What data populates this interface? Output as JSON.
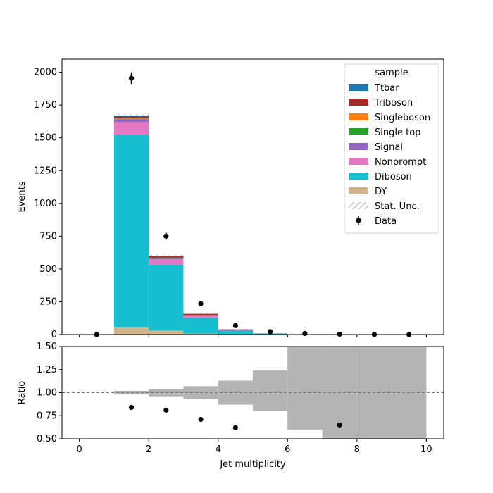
{
  "chart_data": {
    "type": "bar",
    "stacked": true,
    "histogram_bins": [
      0,
      1,
      2,
      3,
      4,
      5,
      6,
      7,
      8,
      9,
      10
    ],
    "main_panel": {
      "ylabel": "Events",
      "ylim": [
        0,
        2100
      ],
      "yticks": [
        0,
        250,
        500,
        750,
        1000,
        1250,
        1500,
        1750,
        2000
      ],
      "series": [
        {
          "name": "DY",
          "color": "#d2b48c",
          "values": [
            0,
            55,
            30,
            8,
            3,
            1,
            0,
            0,
            0,
            0
          ]
        },
        {
          "name": "Diboson",
          "color": "#17becf",
          "values": [
            0,
            1470,
            505,
            122,
            30,
            6,
            2,
            1,
            0,
            0
          ]
        },
        {
          "name": "Nonprompt",
          "color": "#e377c2",
          "values": [
            0,
            95,
            38,
            14,
            3,
            1,
            0,
            0,
            0,
            0
          ]
        },
        {
          "name": "Signal",
          "color": "#9467bd",
          "values": [
            0,
            22,
            10,
            5,
            1,
            0,
            0,
            0,
            0,
            0
          ]
        },
        {
          "name": "Single top",
          "color": "#2ca02c",
          "values": [
            0,
            3,
            2,
            1,
            0,
            0,
            0,
            0,
            0,
            0
          ]
        },
        {
          "name": "Singleboson",
          "color": "#ff7f0e",
          "values": [
            0,
            2,
            1,
            0,
            0,
            0,
            0,
            0,
            0,
            0
          ]
        },
        {
          "name": "Triboson",
          "color": "#a52a2a",
          "values": [
            0,
            18,
            12,
            6,
            2,
            1,
            0,
            0,
            0,
            0
          ]
        },
        {
          "name": "Ttbar",
          "color": "#1f77b4",
          "values": [
            0,
            5,
            3,
            2,
            1,
            0,
            0,
            0,
            0,
            0
          ]
        }
      ],
      "stat_unc": [
        0,
        12,
        8,
        5,
        3,
        2,
        1,
        1,
        0,
        0
      ],
      "data": {
        "name": "Data",
        "x": [
          0.5,
          1.5,
          2.5,
          3.5,
          4.5,
          5.5,
          6.5,
          7.5,
          8.5,
          9.5
        ],
        "y": [
          0,
          1955,
          750,
          235,
          68,
          22,
          8,
          3,
          1,
          0
        ],
        "yerr": [
          0,
          44,
          27,
          15,
          8,
          5,
          3,
          2,
          1,
          0
        ]
      }
    },
    "ratio_panel": {
      "ylabel": "Ratio",
      "xlabel": "Jet multiplicity",
      "ylim": [
        0.5,
        1.5
      ],
      "yticks": [
        0.5,
        0.75,
        1.0,
        1.25,
        1.5
      ],
      "ytick_labels": [
        "0.50",
        "0.75",
        "1.00",
        "1.25",
        "1.50"
      ],
      "xticks": [
        0,
        2,
        4,
        6,
        8,
        10
      ],
      "reference_line": 1.0,
      "unc_band": [
        {
          "lo": 1.0,
          "hi": 1.0
        },
        {
          "lo": 0.98,
          "hi": 1.02
        },
        {
          "lo": 0.96,
          "hi": 1.04
        },
        {
          "lo": 0.93,
          "hi": 1.07
        },
        {
          "lo": 0.87,
          "hi": 1.13
        },
        {
          "lo": 0.8,
          "hi": 1.24
        },
        {
          "lo": 0.6,
          "hi": 1.5
        },
        {
          "lo": 0.5,
          "hi": 1.5
        },
        {
          "lo": 0.5,
          "hi": 1.5
        },
        {
          "lo": 0.5,
          "hi": 1.5
        }
      ],
      "points": [
        {
          "x": 1.5,
          "y": 0.84
        },
        {
          "x": 2.5,
          "y": 0.81
        },
        {
          "x": 3.5,
          "y": 0.71
        },
        {
          "x": 4.5,
          "y": 0.62
        },
        {
          "x": 7.5,
          "y": 0.65
        }
      ]
    },
    "xlim": [
      -0.5,
      10.5
    ],
    "legend": {
      "title": "sample",
      "placement": "top-right",
      "entries": [
        {
          "label": "Ttbar",
          "kind": "patch",
          "color": "#1f77b4"
        },
        {
          "label": "Triboson",
          "kind": "patch",
          "color": "#a52a2a"
        },
        {
          "label": "Singleboson",
          "kind": "patch",
          "color": "#ff7f0e"
        },
        {
          "label": "Single top",
          "kind": "patch",
          "color": "#2ca02c"
        },
        {
          "label": "Signal",
          "kind": "patch",
          "color": "#9467bd"
        },
        {
          "label": "Nonprompt",
          "kind": "patch",
          "color": "#e377c2"
        },
        {
          "label": "Diboson",
          "kind": "patch",
          "color": "#17becf"
        },
        {
          "label": "DY",
          "kind": "patch",
          "color": "#d2b48c"
        },
        {
          "label": "Stat. Unc.",
          "kind": "hatch",
          "color": "#888888"
        },
        {
          "label": "Data",
          "kind": "errorbar",
          "color": "#000000"
        }
      ]
    }
  }
}
